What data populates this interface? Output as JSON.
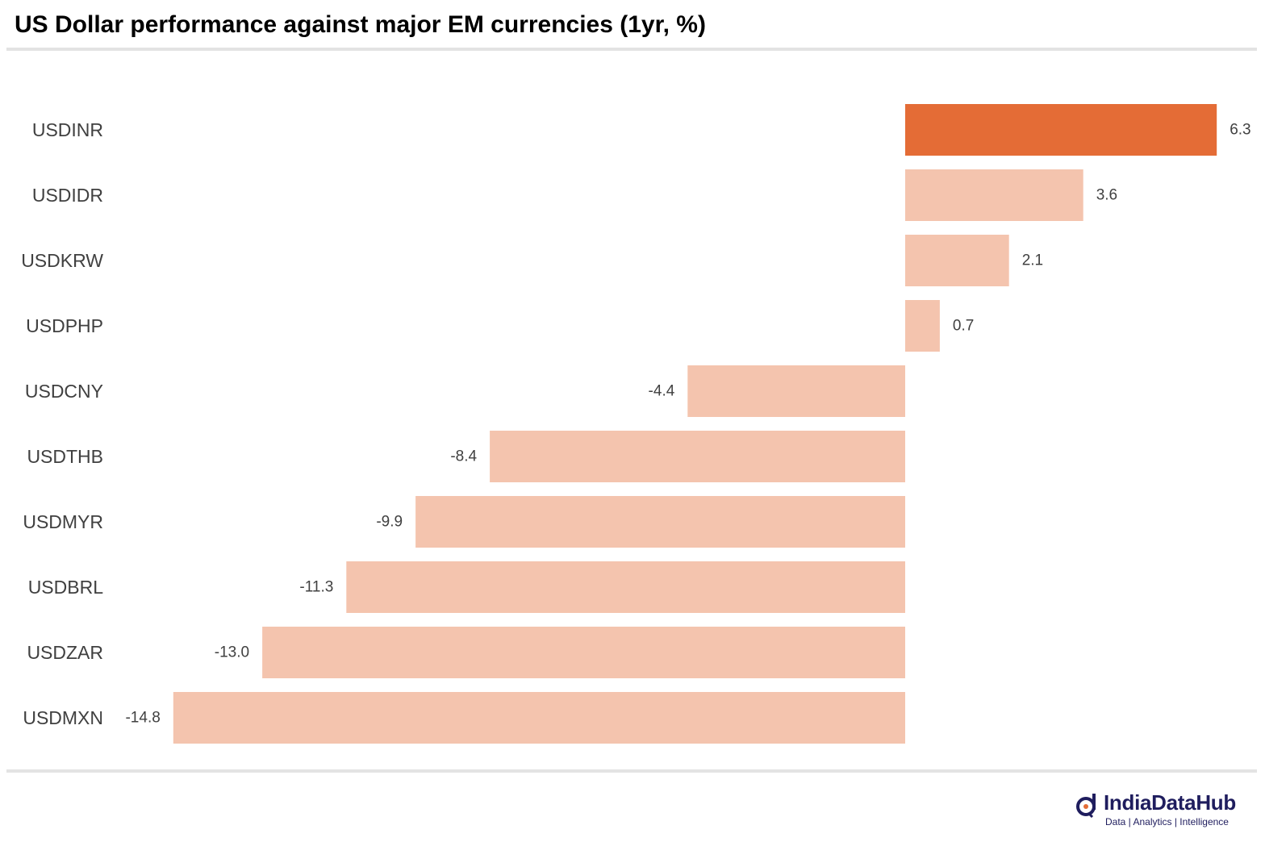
{
  "title": "US Dollar performance against major EM currencies (1yr, %)",
  "brand": {
    "name": "IndiaDataHub",
    "tagline": "Data | Analytics | Intelligence"
  },
  "colors": {
    "highlight": "#e46c36",
    "bar": "#f4c4ae",
    "label": "#404040",
    "rule": "#e3e3e3",
    "brand": "#1f1d5e"
  },
  "chart_data": {
    "type": "bar",
    "orientation": "horizontal",
    "title": "US Dollar performance against major EM currencies (1yr, %)",
    "xlabel": "",
    "ylabel": "",
    "grid": false,
    "highlight_category": "USDINR",
    "categories": [
      "USDINR",
      "USDIDR",
      "USDKRW",
      "USDPHP",
      "USDCNY",
      "USDTHB",
      "USDMYR",
      "USDBRL",
      "USDZAR",
      "USDMXN"
    ],
    "values": [
      6.3,
      3.6,
      2.1,
      0.7,
      -4.4,
      -8.4,
      -9.9,
      -11.3,
      -13.0,
      -14.8
    ],
    "data_labels": [
      "6.3",
      "3.6",
      "2.1",
      "0.7",
      "-4.4",
      "-8.4",
      "-9.9",
      "-11.3",
      "-13.0",
      "-14.8"
    ]
  }
}
